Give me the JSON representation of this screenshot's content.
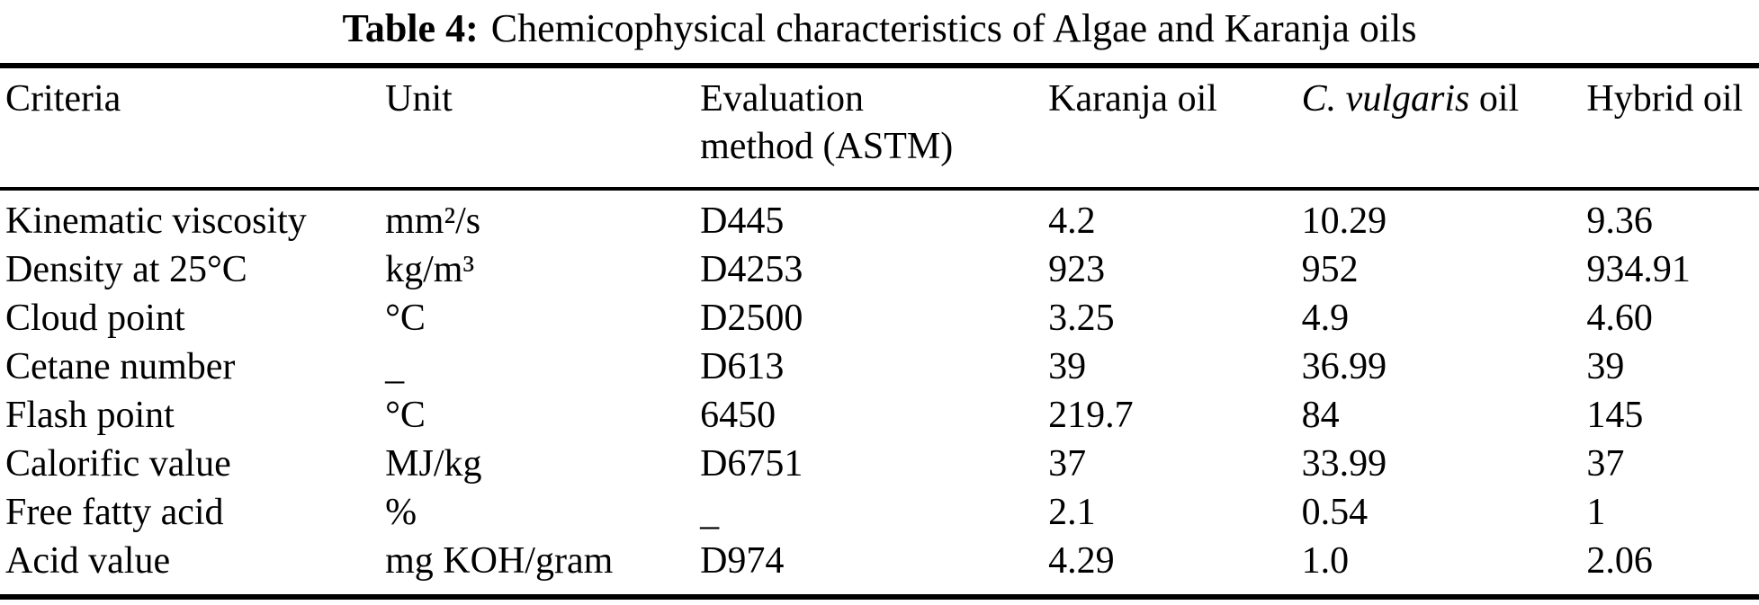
{
  "caption": {
    "label": "Table 4:",
    "text": "Chemicophysical characteristics of Algae and Karanja oils"
  },
  "table": {
    "headers": {
      "criteria": "Criteria",
      "unit": "Unit",
      "evaluation_line1": "Evaluation",
      "evaluation_line2": "method (ASTM)",
      "karanja": "Karanja oil",
      "vulgaris_species": "C. vulgaris",
      "vulgaris_suffix": " oil",
      "hybrid": "Hybrid oil"
    },
    "rows": [
      {
        "criteria": "Kinematic viscosity",
        "unit": "mm²/s",
        "method": "D445",
        "karanja": "4.2",
        "vulgaris": "10.29",
        "hybrid": "9.36"
      },
      {
        "criteria": "Density at 25°C",
        "unit": "kg/m³",
        "method": "D4253",
        "karanja": "923",
        "vulgaris": "952",
        "hybrid": "934.91"
      },
      {
        "criteria": "Cloud point",
        "unit": "°C",
        "method": "D2500",
        "karanja": "3.25",
        "vulgaris": "4.9",
        "hybrid": "4.60"
      },
      {
        "criteria": "Cetane number",
        "unit": "_",
        "method": "D613",
        "karanja": "39",
        "vulgaris": "36.99",
        "hybrid": "39"
      },
      {
        "criteria": "Flash point",
        "unit": "°C",
        "method": "6450",
        "karanja": "219.7",
        "vulgaris": "84",
        "hybrid": "145"
      },
      {
        "criteria": "Calorific value",
        "unit": "MJ/kg",
        "method": "D6751",
        "karanja": "37",
        "vulgaris": "33.99",
        "hybrid": "37"
      },
      {
        "criteria": "Free fatty acid",
        "unit": "%",
        "method": "_",
        "karanja": "2.1",
        "vulgaris": "0.54",
        "hybrid": "1"
      },
      {
        "criteria": "Acid value",
        "unit": "mg KOH/gram",
        "method": "D974",
        "karanja": "4.29",
        "vulgaris": "1.0",
        "hybrid": "2.06"
      }
    ]
  },
  "colors": {
    "text": "#000000",
    "background": "#ffffff",
    "rule": "#000000"
  }
}
